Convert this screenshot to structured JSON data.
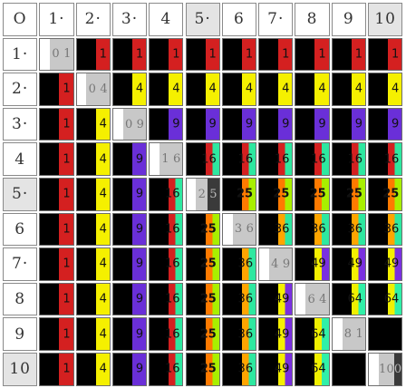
{
  "corner_label": "O",
  "col_headers": [
    "1·",
    "2·",
    "3·",
    "4",
    "5·",
    "6",
    "7·",
    "8",
    "9",
    "10"
  ],
  "row_headers": [
    "1·",
    "2·",
    "3·",
    "4",
    "5·",
    "6",
    "7·",
    "8",
    "9",
    "10"
  ],
  "shaded_headers": [
    5,
    10
  ],
  "colors": {
    "1": "#d42020",
    "4": "#f5f000",
    "9": "#6a2fd8",
    "16": "#2ee8a0",
    "25": "#ff7a00",
    "36": "#ffa500",
    "49": "#7a30e0",
    "64": "#30f0a8",
    "81": "#000000",
    "100": "#000000"
  },
  "squares": [
    "1",
    "4",
    "9",
    "16",
    "25",
    "36",
    "49",
    "64",
    "81",
    "100"
  ],
  "diagonal_labels": [
    "01",
    "04",
    "09",
    "16",
    "25",
    "36",
    "49",
    "64",
    "81",
    "100"
  ]
}
